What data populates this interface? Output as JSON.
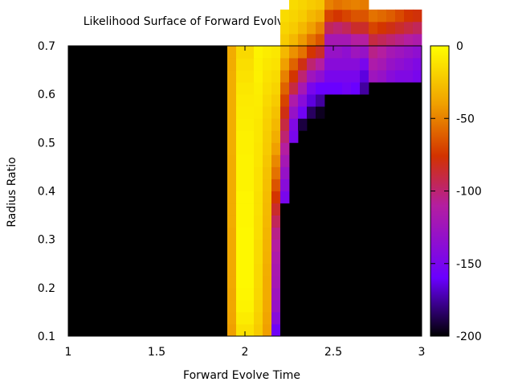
{
  "chart_data": {
    "type": "heatmap",
    "title": "Likelihood Surface of Forward Evolve Time vs Radius Ratio",
    "xlabel": "Forward Evolve Time",
    "ylabel": "Radius Ratio",
    "xlim": [
      1,
      3
    ],
    "ylim": [
      0.1,
      0.7
    ],
    "xticks": [
      "1",
      "1.5",
      "2",
      "2.5",
      "3"
    ],
    "yticks": [
      "0.1",
      "0.2",
      "0.3",
      "0.4",
      "0.5",
      "0.6",
      "0.7"
    ],
    "colorbar": {
      "range": [
        -200,
        0
      ],
      "ticks": [
        "0",
        "-50",
        "-100",
        "-150",
        "-200"
      ],
      "colormap": [
        "#000000",
        "#6a00ff",
        "#b41ea0",
        "#d23200",
        "#f0a000",
        "#ffff00"
      ]
    },
    "background_value": -200,
    "cell_width": 0.05,
    "cell_height": 0.025,
    "cells": [
      {
        "x_from": 1.9,
        "x_to": 1.95,
        "y": 0.1,
        "values": [
          -40,
          -38,
          -37,
          -37,
          -36,
          -36,
          -36,
          -36,
          -36,
          -35,
          -35,
          -35,
          -35,
          -35,
          -35,
          -34,
          -34,
          -34,
          -34,
          -34,
          -34,
          -34,
          -35,
          -35
        ]
      },
      {
        "x_from": 1.95,
        "x_to": 2.05,
        "y": 0.1,
        "values": [
          -12,
          -8,
          -5,
          -4,
          -3,
          -3,
          -3,
          -3,
          -3,
          -4,
          -4,
          -4,
          -5,
          -5,
          -5,
          -6,
          -6,
          -7,
          -8,
          -9,
          -10,
          -12,
          -14,
          -16
        ]
      },
      {
        "x_from": 2.05,
        "x_to": 2.1,
        "y": 0.1,
        "values": [
          -22,
          -20,
          -18,
          -17,
          -16,
          -16,
          -15,
          -15,
          -14,
          -14,
          -13,
          -13,
          -12,
          -12,
          -11,
          -11,
          -10,
          -10,
          -9,
          -8,
          -7,
          -6,
          -6,
          -5
        ]
      },
      {
        "x_from": 2.1,
        "x_to": 2.15,
        "y": 0.1,
        "values": [
          -40,
          -38,
          -36,
          -35,
          -35,
          -34,
          -33,
          -32,
          -31,
          -30,
          -29,
          -28,
          -27,
          -26,
          -24,
          -22,
          -21,
          -20,
          -18,
          -16,
          -14,
          -12,
          -10,
          -8
        ]
      },
      {
        "x_from": 2.15,
        "x_to": 2.2,
        "y": 0.1,
        "values": [
          -155,
          -140,
          -130,
          -125,
          -120,
          -118,
          -115,
          -110,
          -105,
          -95,
          -85,
          -75,
          -65,
          -55,
          -48,
          -40,
          -34,
          -30,
          -26,
          -22,
          -18,
          -15,
          -12,
          -10
        ]
      },
      {
        "x_from": 2.2,
        "x_to": 2.25,
        "y": 0.1,
        "values": [
          -200,
          -200,
          -200,
          -200,
          -200,
          -200,
          -200,
          -200,
          -200,
          -200,
          -200,
          -200,
          -200,
          -200,
          -200,
          -200,
          -200,
          -200,
          -200,
          -200,
          -200,
          -200,
          -200,
          -200
        ]
      },
      {
        "x_from": 2.2,
        "x_to": 2.25,
        "y": 0.375,
        "values": [
          -150,
          -140,
          -130,
          -120,
          -110,
          -100,
          -90,
          -80,
          -70,
          -60,
          -50,
          -40,
          -30,
          -22,
          -18,
          -15
        ]
      },
      {
        "x_from": 2.25,
        "x_to": 2.3,
        "y": 0.5,
        "values": [
          -150,
          -145,
          -130,
          -115,
          -90,
          -75,
          -60,
          -45,
          -30,
          -22,
          -18,
          -15
        ]
      },
      {
        "x_from": 2.3,
        "x_to": 2.35,
        "y": 0.525,
        "values": [
          -190,
          -155,
          -140,
          -120,
          -100,
          -80,
          -55,
          -42,
          -30,
          -22,
          -18
        ]
      },
      {
        "x_from": 2.35,
        "x_to": 2.4,
        "y": 0.55,
        "values": [
          -185,
          -165,
          -150,
          -125,
          -100,
          -75,
          -55,
          -40,
          -30,
          -22
        ]
      },
      {
        "x_from": 2.4,
        "x_to": 2.45,
        "y": 0.55,
        "values": [
          -195,
          -175,
          -160,
          -135,
          -110,
          -85,
          -65,
          -50,
          -35,
          -25
        ]
      },
      {
        "x_from": 2.45,
        "x_to": 2.5,
        "y": 0.6,
        "values": [
          -160,
          -150,
          -140,
          -130,
          -120,
          -95,
          -70,
          -50
        ]
      },
      {
        "x_from": 2.5,
        "x_to": 2.55,
        "y": 0.6,
        "values": [
          -160,
          -150,
          -140,
          -130,
          -120,
          -100,
          -75,
          -55
        ]
      },
      {
        "x_from": 2.55,
        "x_to": 2.6,
        "y": 0.6,
        "values": [
          -155,
          -150,
          -140,
          -135,
          -120,
          -95,
          -70,
          -52
        ]
      },
      {
        "x_from": 2.6,
        "x_to": 2.65,
        "y": 0.6,
        "values": [
          -160,
          -150,
          -140,
          -125,
          -110,
          -85,
          -65,
          -50
        ]
      },
      {
        "x_from": 2.65,
        "x_to": 2.7,
        "y": 0.6,
        "values": [
          -175,
          -165,
          -150,
          -130,
          -110,
          -85,
          -65,
          -52
        ]
      },
      {
        "x_from": 2.7,
        "x_to": 2.75,
        "y": 0.625,
        "values": [
          -125,
          -115,
          -105,
          -90,
          -70,
          -55
        ]
      },
      {
        "x_from": 2.75,
        "x_to": 2.8,
        "y": 0.625,
        "values": [
          -130,
          -120,
          -110,
          -95,
          -75,
          -58
        ]
      },
      {
        "x_from": 2.8,
        "x_to": 2.85,
        "y": 0.625,
        "values": [
          -140,
          -130,
          -120,
          -100,
          -80,
          -62
        ]
      },
      {
        "x_from": 2.85,
        "x_to": 2.9,
        "y": 0.625,
        "values": [
          -145,
          -135,
          -125,
          -105,
          -85,
          -68
        ]
      },
      {
        "x_from": 2.9,
        "x_to": 2.95,
        "y": 0.625,
        "values": [
          -145,
          -140,
          -130,
          -110,
          -90,
          -75
        ]
      },
      {
        "x_from": 2.95,
        "x_to": 3.0,
        "y": 0.625,
        "values": [
          -150,
          -145,
          -135,
          -115,
          -95,
          -78
        ]
      }
    ]
  }
}
